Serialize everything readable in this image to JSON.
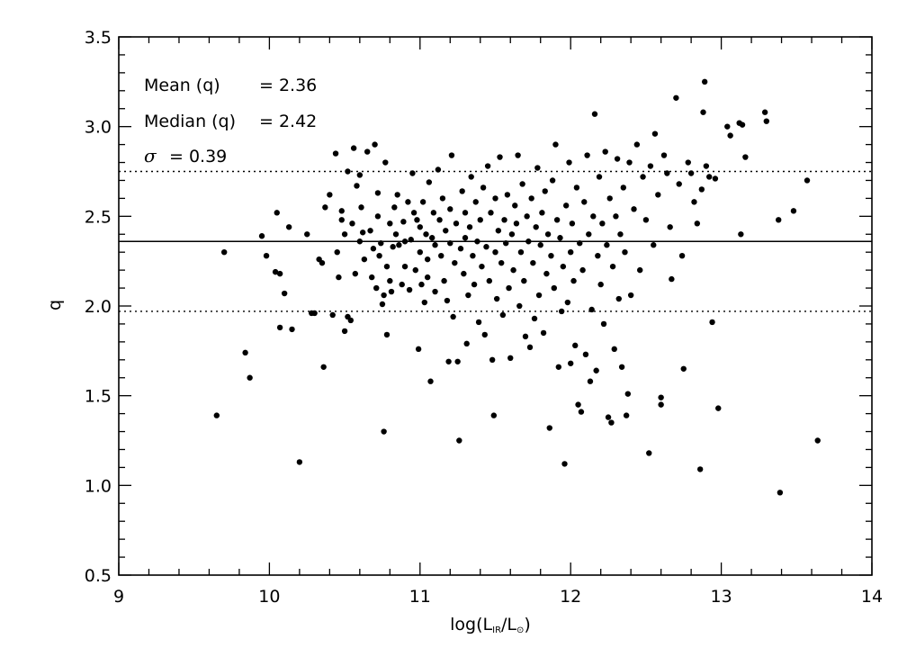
{
  "chart_data": {
    "type": "scatter",
    "xlabel": {
      "prefix": "log(L",
      "sub1": "IR",
      "mid": "/L",
      "sub2": "⊙",
      "suffix": ")"
    },
    "ylabel": "q",
    "xlim": [
      9,
      14
    ],
    "ylim": [
      0.5,
      3.5
    ],
    "x_ticks": [
      9,
      10,
      11,
      12,
      13,
      14
    ],
    "x_tick_labels": [
      "9",
      "10",
      "11",
      "12",
      "13",
      "14"
    ],
    "y_ticks": [
      0.5,
      1.0,
      1.5,
      2.0,
      2.5,
      3.0,
      3.5
    ],
    "y_tick_labels": [
      "0.5",
      "1.0",
      "1.5",
      "2.0",
      "2.5",
      "3.0",
      "3.5"
    ],
    "grid": false,
    "legend": "none",
    "annotations": {
      "mean_label": "Mean (q)",
      "mean_value": "= 2.36",
      "median_label": "Median (q)",
      "median_value": "= 2.42",
      "sigma_symbol": "σ",
      "sigma_value": "= 0.39"
    },
    "reference_lines": [
      {
        "y": 2.36,
        "style": "solid"
      },
      {
        "y": 2.75,
        "style": "dotted"
      },
      {
        "y": 1.97,
        "style": "dotted"
      }
    ],
    "marker_color": "#000000",
    "points": [
      [
        9.65,
        1.39
      ],
      [
        9.7,
        2.3
      ],
      [
        9.84,
        1.74
      ],
      [
        9.87,
        1.6
      ],
      [
        9.95,
        2.39
      ],
      [
        9.98,
        2.28
      ],
      [
        10.04,
        2.19
      ],
      [
        10.05,
        2.52
      ],
      [
        10.07,
        2.18
      ],
      [
        10.07,
        1.88
      ],
      [
        10.1,
        2.07
      ],
      [
        10.13,
        2.44
      ],
      [
        10.15,
        1.87
      ],
      [
        10.2,
        1.13
      ],
      [
        10.25,
        2.4
      ],
      [
        10.28,
        1.96
      ],
      [
        10.3,
        1.96
      ],
      [
        10.33,
        2.26
      ],
      [
        10.35,
        2.24
      ],
      [
        10.36,
        1.66
      ],
      [
        10.37,
        2.55
      ],
      [
        10.4,
        2.62
      ],
      [
        10.42,
        1.95
      ],
      [
        10.44,
        2.85
      ],
      [
        10.45,
        2.3
      ],
      [
        10.46,
        2.16
      ],
      [
        10.48,
        2.48
      ],
      [
        10.48,
        2.53
      ],
      [
        10.5,
        1.86
      ],
      [
        10.5,
        2.4
      ],
      [
        10.52,
        2.75
      ],
      [
        10.52,
        1.94
      ],
      [
        10.54,
        1.92
      ],
      [
        10.55,
        2.46
      ],
      [
        10.56,
        2.88
      ],
      [
        10.57,
        2.18
      ],
      [
        10.58,
        2.67
      ],
      [
        10.6,
        2.73
      ],
      [
        10.6,
        2.36
      ],
      [
        10.61,
        2.55
      ],
      [
        10.62,
        2.41
      ],
      [
        10.63,
        2.26
      ],
      [
        10.65,
        2.86
      ],
      [
        10.67,
        2.42
      ],
      [
        10.68,
        2.16
      ],
      [
        10.69,
        2.32
      ],
      [
        10.7,
        2.9
      ],
      [
        10.71,
        2.1
      ],
      [
        10.72,
        2.5
      ],
      [
        10.72,
        2.63
      ],
      [
        10.73,
        2.28
      ],
      [
        10.74,
        2.35
      ],
      [
        10.75,
        2.01
      ],
      [
        10.76,
        2.06
      ],
      [
        10.76,
        1.3
      ],
      [
        10.77,
        2.8
      ],
      [
        10.78,
        2.22
      ],
      [
        10.78,
        1.84
      ],
      [
        10.8,
        2.46
      ],
      [
        10.8,
        2.14
      ],
      [
        10.81,
        2.08
      ],
      [
        10.82,
        2.33
      ],
      [
        10.83,
        2.55
      ],
      [
        10.84,
        2.4
      ],
      [
        10.85,
        2.62
      ],
      [
        10.86,
        2.34
      ],
      [
        10.88,
        2.12
      ],
      [
        10.89,
        2.47
      ],
      [
        10.9,
        2.36
      ],
      [
        10.9,
        2.22
      ],
      [
        10.92,
        2.58
      ],
      [
        10.93,
        2.09
      ],
      [
        10.94,
        2.37
      ],
      [
        10.95,
        2.74
      ],
      [
        10.96,
        2.52
      ],
      [
        10.97,
        2.2
      ],
      [
        10.98,
        2.48
      ],
      [
        10.99,
        1.76
      ],
      [
        11.0,
        2.44
      ],
      [
        11.0,
        2.3
      ],
      [
        11.01,
        2.12
      ],
      [
        11.02,
        2.58
      ],
      [
        11.03,
        2.02
      ],
      [
        11.04,
        2.4
      ],
      [
        11.05,
        2.26
      ],
      [
        11.05,
        2.16
      ],
      [
        11.06,
        2.69
      ],
      [
        11.07,
        1.58
      ],
      [
        11.08,
        2.38
      ],
      [
        11.09,
        2.52
      ],
      [
        11.1,
        2.08
      ],
      [
        11.1,
        2.34
      ],
      [
        11.12,
        2.76
      ],
      [
        11.13,
        2.48
      ],
      [
        11.14,
        2.28
      ],
      [
        11.15,
        2.6
      ],
      [
        11.16,
        2.14
      ],
      [
        11.17,
        2.42
      ],
      [
        11.18,
        2.03
      ],
      [
        11.19,
        1.69
      ],
      [
        11.2,
        2.35
      ],
      [
        11.2,
        2.54
      ],
      [
        11.21,
        2.84
      ],
      [
        11.22,
        1.94
      ],
      [
        11.23,
        2.24
      ],
      [
        11.24,
        2.46
      ],
      [
        11.25,
        1.69
      ],
      [
        11.26,
        1.25
      ],
      [
        11.27,
        2.32
      ],
      [
        11.28,
        2.64
      ],
      [
        11.29,
        2.18
      ],
      [
        11.3,
        2.38
      ],
      [
        11.3,
        2.52
      ],
      [
        11.31,
        1.79
      ],
      [
        11.32,
        2.06
      ],
      [
        11.33,
        2.44
      ],
      [
        11.34,
        2.72
      ],
      [
        11.35,
        2.28
      ],
      [
        11.36,
        2.12
      ],
      [
        11.37,
        2.58
      ],
      [
        11.38,
        2.36
      ],
      [
        11.39,
        1.91
      ],
      [
        11.4,
        2.48
      ],
      [
        11.41,
        2.22
      ],
      [
        11.42,
        2.66
      ],
      [
        11.43,
        1.84
      ],
      [
        11.44,
        2.33
      ],
      [
        11.45,
        2.78
      ],
      [
        11.46,
        2.14
      ],
      [
        11.47,
        2.52
      ],
      [
        11.48,
        1.7
      ],
      [
        11.49,
        1.39
      ],
      [
        11.5,
        2.3
      ],
      [
        11.5,
        2.6
      ],
      [
        11.51,
        2.04
      ],
      [
        11.52,
        2.42
      ],
      [
        11.53,
        2.83
      ],
      [
        11.54,
        2.24
      ],
      [
        11.55,
        1.95
      ],
      [
        11.56,
        2.48
      ],
      [
        11.57,
        2.35
      ],
      [
        11.58,
        2.62
      ],
      [
        11.59,
        2.1
      ],
      [
        11.6,
        1.71
      ],
      [
        11.61,
        2.4
      ],
      [
        11.62,
        2.2
      ],
      [
        11.63,
        2.56
      ],
      [
        11.64,
        2.46
      ],
      [
        11.65,
        2.84
      ],
      [
        11.66,
        2.0
      ],
      [
        11.67,
        2.3
      ],
      [
        11.68,
        2.68
      ],
      [
        11.69,
        2.14
      ],
      [
        11.7,
        1.83
      ],
      [
        11.71,
        2.5
      ],
      [
        11.72,
        2.36
      ],
      [
        11.73,
        1.77
      ],
      [
        11.74,
        2.6
      ],
      [
        11.75,
        2.24
      ],
      [
        11.76,
        1.93
      ],
      [
        11.77,
        2.44
      ],
      [
        11.78,
        2.77
      ],
      [
        11.79,
        2.06
      ],
      [
        11.8,
        2.34
      ],
      [
        11.81,
        2.52
      ],
      [
        11.82,
        1.85
      ],
      [
        11.83,
        2.64
      ],
      [
        11.84,
        2.18
      ],
      [
        11.85,
        2.4
      ],
      [
        11.86,
        1.32
      ],
      [
        11.87,
        2.28
      ],
      [
        11.88,
        2.7
      ],
      [
        11.89,
        2.1
      ],
      [
        11.9,
        2.9
      ],
      [
        11.91,
        2.48
      ],
      [
        11.92,
        1.66
      ],
      [
        11.93,
        2.38
      ],
      [
        11.94,
        1.97
      ],
      [
        11.95,
        2.22
      ],
      [
        11.96,
        1.12
      ],
      [
        11.97,
        2.56
      ],
      [
        11.98,
        2.02
      ],
      [
        11.99,
        2.8
      ],
      [
        12.0,
        2.3
      ],
      [
        12.0,
        1.68
      ],
      [
        12.01,
        2.46
      ],
      [
        12.02,
        2.14
      ],
      [
        12.03,
        1.78
      ],
      [
        12.04,
        2.66
      ],
      [
        12.05,
        1.45
      ],
      [
        12.06,
        2.35
      ],
      [
        12.07,
        1.41
      ],
      [
        12.08,
        2.2
      ],
      [
        12.09,
        2.58
      ],
      [
        12.1,
        1.73
      ],
      [
        12.11,
        2.84
      ],
      [
        12.12,
        2.4
      ],
      [
        12.13,
        1.58
      ],
      [
        12.14,
        1.98
      ],
      [
        12.15,
        2.5
      ],
      [
        12.16,
        3.07
      ],
      [
        12.17,
        1.64
      ],
      [
        12.18,
        2.28
      ],
      [
        12.19,
        2.72
      ],
      [
        12.2,
        2.12
      ],
      [
        12.21,
        2.46
      ],
      [
        12.22,
        1.9
      ],
      [
        12.23,
        2.86
      ],
      [
        12.24,
        2.34
      ],
      [
        12.25,
        1.38
      ],
      [
        12.26,
        2.6
      ],
      [
        12.27,
        1.35
      ],
      [
        12.28,
        2.22
      ],
      [
        12.29,
        1.76
      ],
      [
        12.3,
        2.5
      ],
      [
        12.31,
        2.82
      ],
      [
        12.32,
        2.04
      ],
      [
        12.33,
        2.4
      ],
      [
        12.34,
        1.66
      ],
      [
        12.35,
        2.66
      ],
      [
        12.36,
        2.3
      ],
      [
        12.37,
        1.39
      ],
      [
        12.38,
        1.51
      ],
      [
        12.39,
        2.8
      ],
      [
        12.4,
        2.06
      ],
      [
        12.42,
        2.54
      ],
      [
        12.44,
        2.9
      ],
      [
        12.46,
        2.2
      ],
      [
        12.48,
        2.72
      ],
      [
        12.5,
        2.48
      ],
      [
        12.52,
        1.18
      ],
      [
        12.53,
        2.78
      ],
      [
        12.55,
        2.34
      ],
      [
        12.56,
        2.96
      ],
      [
        12.58,
        2.62
      ],
      [
        12.6,
        1.45
      ],
      [
        12.6,
        1.49
      ],
      [
        12.62,
        2.84
      ],
      [
        12.64,
        2.74
      ],
      [
        12.66,
        2.44
      ],
      [
        12.67,
        2.15
      ],
      [
        12.7,
        3.16
      ],
      [
        12.72,
        2.68
      ],
      [
        12.74,
        2.28
      ],
      [
        12.75,
        1.65
      ],
      [
        12.78,
        2.8
      ],
      [
        12.8,
        2.74
      ],
      [
        12.82,
        2.58
      ],
      [
        12.84,
        2.46
      ],
      [
        12.86,
        1.09
      ],
      [
        12.87,
        2.65
      ],
      [
        12.88,
        3.08
      ],
      [
        12.89,
        3.25
      ],
      [
        12.9,
        2.78
      ],
      [
        12.92,
        2.72
      ],
      [
        12.94,
        1.91
      ],
      [
        12.96,
        2.71
      ],
      [
        12.98,
        1.43
      ],
      [
        13.04,
        3.0
      ],
      [
        13.06,
        2.95
      ],
      [
        13.12,
        3.02
      ],
      [
        13.13,
        2.4
      ],
      [
        13.14,
        3.01
      ],
      [
        13.16,
        2.83
      ],
      [
        13.29,
        3.08
      ],
      [
        13.3,
        3.03
      ],
      [
        13.38,
        2.48
      ],
      [
        13.39,
        0.96
      ],
      [
        13.48,
        2.53
      ],
      [
        13.57,
        2.7
      ],
      [
        13.64,
        1.25
      ]
    ]
  }
}
